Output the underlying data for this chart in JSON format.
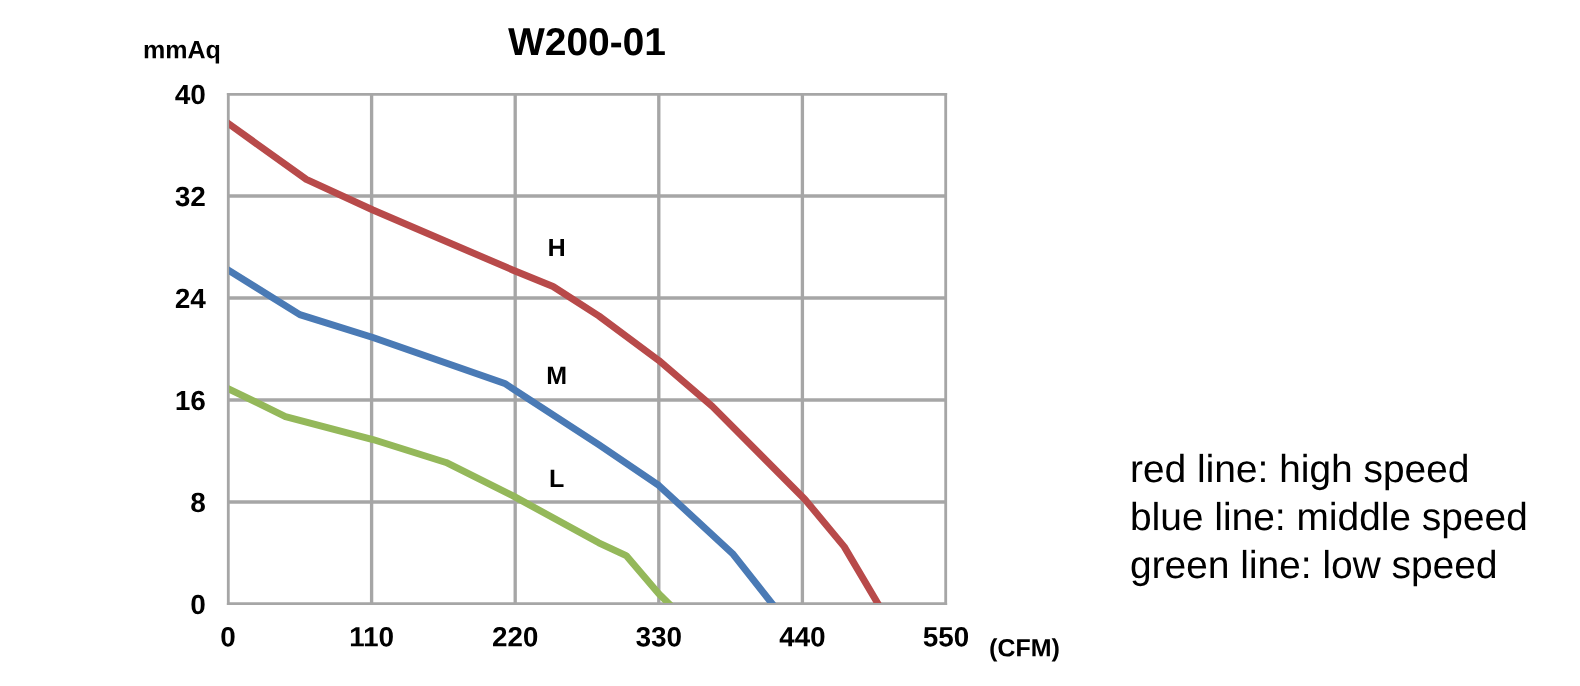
{
  "chart_data": {
    "type": "line",
    "title": "W200-01",
    "xlabel": "(CFM)",
    "ylabel": "mmAq",
    "xlim": [
      0,
      550
    ],
    "xticks": [
      0,
      110,
      220,
      330,
      440,
      550
    ],
    "ylim": [
      0,
      40
    ],
    "yticks": [
      0,
      8,
      16,
      24,
      32,
      40
    ],
    "grid": true,
    "marker": "none",
    "line_style": "solid",
    "series": [
      {
        "name": "H",
        "color": "#b84a4a",
        "x": [
          0,
          60,
          111,
          218,
          249,
          284,
          330,
          371,
          442,
          472,
          498
        ],
        "values": [
          37.7,
          33.3,
          30.9,
          26.2,
          24.9,
          22.6,
          19.1,
          15.5,
          8.2,
          4.5,
          0
        ]
      },
      {
        "name": "M",
        "color": "#4a7ab5",
        "x": [
          0,
          55,
          111,
          212,
          284,
          330,
          387,
          417
        ],
        "values": [
          26.2,
          22.7,
          20.9,
          17.3,
          12.5,
          9.3,
          3.9,
          0
        ]
      },
      {
        "name": "L",
        "color": "#94b85a",
        "x": [
          0,
          44,
          111,
          167,
          218,
          284,
          305,
          330,
          338
        ],
        "values": [
          16.9,
          14.7,
          12.9,
          11.1,
          8.5,
          4.8,
          3.8,
          0.8,
          0
        ]
      }
    ],
    "annotations": [
      "red line: high speed",
      "blue line: middle speed",
      "green line: low speed"
    ]
  }
}
